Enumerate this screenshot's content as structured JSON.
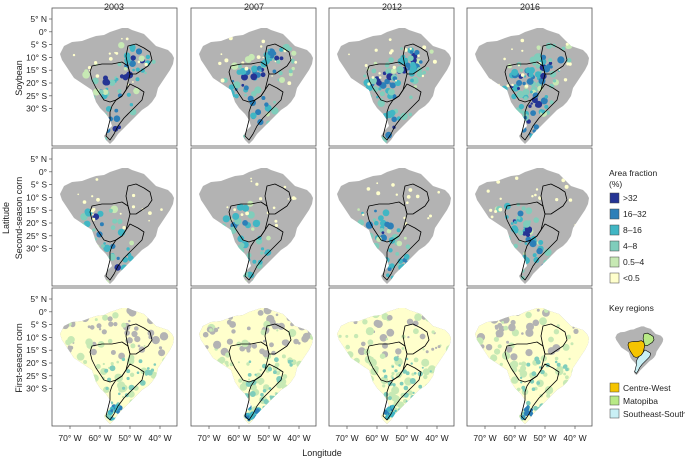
{
  "years": [
    "2003",
    "2007",
    "2012",
    "2016"
  ],
  "crops": [
    "Soybean",
    "Second-season corn",
    "First-season corn"
  ],
  "xlabel": "Longitude",
  "ylabel": "Latitude",
  "lat_ticks": [
    "5° N",
    "0°",
    "5° S",
    "10° S",
    "15° S",
    "20° S",
    "25° S",
    "30° S"
  ],
  "lon_ticks": [
    "70° W",
    "60° W",
    "50° W",
    "40° W"
  ],
  "legend": {
    "title_line1": "Area fraction",
    "title_line2": "(%)",
    "classes": [
      {
        "label": ">32",
        "color": "#253494"
      },
      {
        "label": "16–32",
        "color": "#2c7fb8"
      },
      {
        "label": "8–16",
        "color": "#41b6c4"
      },
      {
        "label": "4–8",
        "color": "#7fcdbb"
      },
      {
        "label": "0.5–4",
        "color": "#c7e9b4"
      },
      {
        "label": "<0.5",
        "color": "#ffffcc"
      }
    ]
  },
  "key_regions": {
    "title": "Key regions",
    "items": [
      {
        "label": "Centre-West",
        "color": "#f5c400"
      },
      {
        "label": "Matopiba",
        "color": "#b8e986"
      },
      {
        "label": "Southeast-South",
        "color": "#c9f0f5"
      }
    ]
  },
  "colors": {
    "background_land": "#b3b3b3",
    "border": "#000000"
  }
}
